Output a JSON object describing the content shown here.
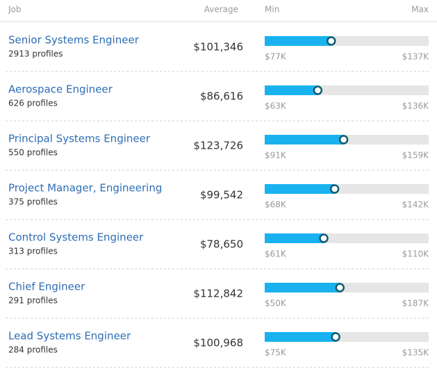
{
  "header": {
    "job": "Job",
    "average": "Average",
    "min": "Min",
    "max": "Max"
  },
  "rows": [
    {
      "job": "Senior Systems Engineer",
      "profiles": "2913 profiles",
      "average": {
        "value": 101346,
        "label": "$101,346"
      },
      "min": {
        "value": 77000,
        "label": "$77K"
      },
      "max": {
        "value": 137000,
        "label": "$137K"
      }
    },
    {
      "job": "Aerospace Engineer",
      "profiles": "626 profiles",
      "average": {
        "value": 86616,
        "label": "$86,616"
      },
      "min": {
        "value": 63000,
        "label": "$63K"
      },
      "max": {
        "value": 136000,
        "label": "$136K"
      }
    },
    {
      "job": "Principal Systems Engineer",
      "profiles": "550 profiles",
      "average": {
        "value": 123726,
        "label": "$123,726"
      },
      "min": {
        "value": 91000,
        "label": "$91K"
      },
      "max": {
        "value": 159000,
        "label": "$159K"
      }
    },
    {
      "job": "Project Manager, Engineering",
      "profiles": "375 profiles",
      "average": {
        "value": 99542,
        "label": "$99,542"
      },
      "min": {
        "value": 68000,
        "label": "$68K"
      },
      "max": {
        "value": 142000,
        "label": "$142K"
      }
    },
    {
      "job": "Control Systems Engineer",
      "profiles": "313 profiles",
      "average": {
        "value": 78650,
        "label": "$78,650"
      },
      "min": {
        "value": 61000,
        "label": "$61K"
      },
      "max": {
        "value": 110000,
        "label": "$110K"
      }
    },
    {
      "job": "Chief Engineer",
      "profiles": "291 profiles",
      "average": {
        "value": 112842,
        "label": "$112,842"
      },
      "min": {
        "value": 50000,
        "label": "$50K"
      },
      "max": {
        "value": 187000,
        "label": "$187K"
      }
    },
    {
      "job": "Lead Systems Engineer",
      "profiles": "284 profiles",
      "average": {
        "value": 100968,
        "label": "$100,968"
      },
      "min": {
        "value": 75000,
        "label": "$75K"
      },
      "max": {
        "value": 135000,
        "label": "$135K"
      }
    }
  ]
}
